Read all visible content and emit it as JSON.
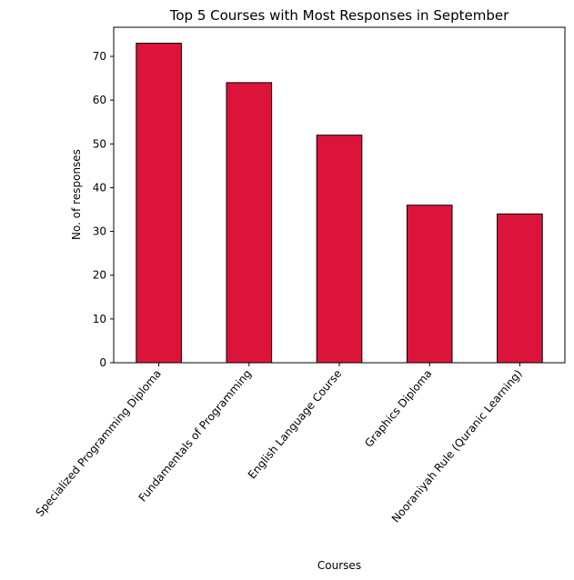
{
  "chart_data": {
    "type": "bar",
    "title": "Top 5 Courses with Most Responses in September",
    "xlabel": "Courses",
    "ylabel": "No. of responses",
    "categories": [
      "Specialized Programming Diploma",
      "Fundamentals of Programming",
      "English Language Course",
      "Graphics Diploma",
      "Nooraniyah Rule (Quranic Learning)"
    ],
    "values": [
      73,
      64,
      52,
      36,
      34
    ],
    "ylim": [
      0,
      76.65
    ],
    "yticks": [
      0,
      10,
      20,
      30,
      40,
      50,
      60,
      70
    ],
    "grid": false,
    "legend": "none",
    "colors": {
      "bar_fill": "#DC143C",
      "bar_edge": "#000000",
      "axis": "#000000",
      "text": "#000000",
      "background": "#FFFFFF"
    }
  }
}
